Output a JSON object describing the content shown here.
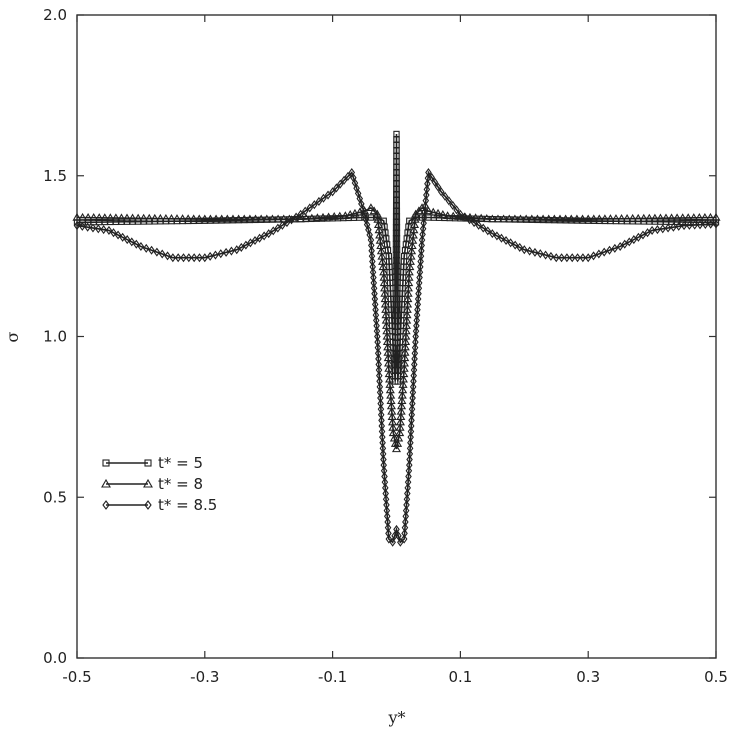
{
  "chart_data": {
    "type": "line",
    "title": "",
    "xlabel": "y*",
    "ylabel": "σ",
    "xlim": [
      -0.5,
      0.5
    ],
    "ylim": [
      0.0,
      2.0
    ],
    "xticks": [
      -0.5,
      -0.3,
      -0.1,
      0.1,
      0.3,
      0.5
    ],
    "xtick_labels": [
      "-0.5",
      "-0.3",
      "-0.1",
      "0.1",
      "0.3",
      "0.5"
    ],
    "yticks": [
      0.0,
      0.5,
      1.0,
      1.5,
      2.0
    ],
    "ytick_labels": [
      "0.0",
      "0.5",
      "1.0",
      "1.5",
      "2.0"
    ],
    "grid": false,
    "legend_position": "lower-left",
    "series": [
      {
        "name": "t* = 5",
        "marker": "square",
        "x": [
          -0.5,
          -0.3,
          -0.15,
          -0.05,
          -0.03,
          -0.02,
          -0.012,
          -0.006,
          -0.002,
          0.0,
          0.002,
          0.006,
          0.012,
          0.02,
          0.03,
          0.05,
          0.15,
          0.3,
          0.5
        ],
        "y": [
          1.355,
          1.36,
          1.365,
          1.37,
          1.37,
          1.36,
          1.25,
          1.0,
          0.86,
          1.63,
          0.86,
          1.0,
          1.25,
          1.36,
          1.37,
          1.37,
          1.365,
          1.36,
          1.355
        ]
      },
      {
        "name": "t* = 8",
        "marker": "triangle",
        "x": [
          -0.5,
          -0.3,
          -0.15,
          -0.08,
          -0.05,
          -0.04,
          -0.03,
          -0.02,
          -0.012,
          -0.005,
          0.0,
          0.005,
          0.012,
          0.02,
          0.03,
          0.04,
          0.05,
          0.08,
          0.15,
          0.3,
          0.5
        ],
        "y": [
          1.37,
          1.365,
          1.365,
          1.375,
          1.39,
          1.4,
          1.38,
          1.2,
          0.9,
          0.7,
          0.65,
          0.7,
          0.9,
          1.2,
          1.38,
          1.4,
          1.39,
          1.375,
          1.365,
          1.365,
          1.37
        ]
      },
      {
        "name": "t* = 8.5",
        "marker": "diamond",
        "x": [
          -0.5,
          -0.45,
          -0.4,
          -0.35,
          -0.3,
          -0.25,
          -0.2,
          -0.15,
          -0.1,
          -0.07,
          -0.05,
          -0.04,
          -0.03,
          -0.02,
          -0.012,
          -0.006,
          0.0,
          0.006,
          0.012,
          0.02,
          0.03,
          0.04,
          0.05,
          0.07,
          0.1,
          0.15,
          0.2,
          0.25,
          0.3,
          0.35,
          0.4,
          0.45,
          0.5
        ],
        "y": [
          1.345,
          1.33,
          1.28,
          1.245,
          1.245,
          1.27,
          1.32,
          1.38,
          1.45,
          1.51,
          1.38,
          1.3,
          1.0,
          0.6,
          0.37,
          0.36,
          0.4,
          0.36,
          0.37,
          0.6,
          1.0,
          1.3,
          1.51,
          1.45,
          1.38,
          1.32,
          1.27,
          1.245,
          1.245,
          1.28,
          1.33,
          1.345,
          1.35
        ]
      }
    ]
  }
}
